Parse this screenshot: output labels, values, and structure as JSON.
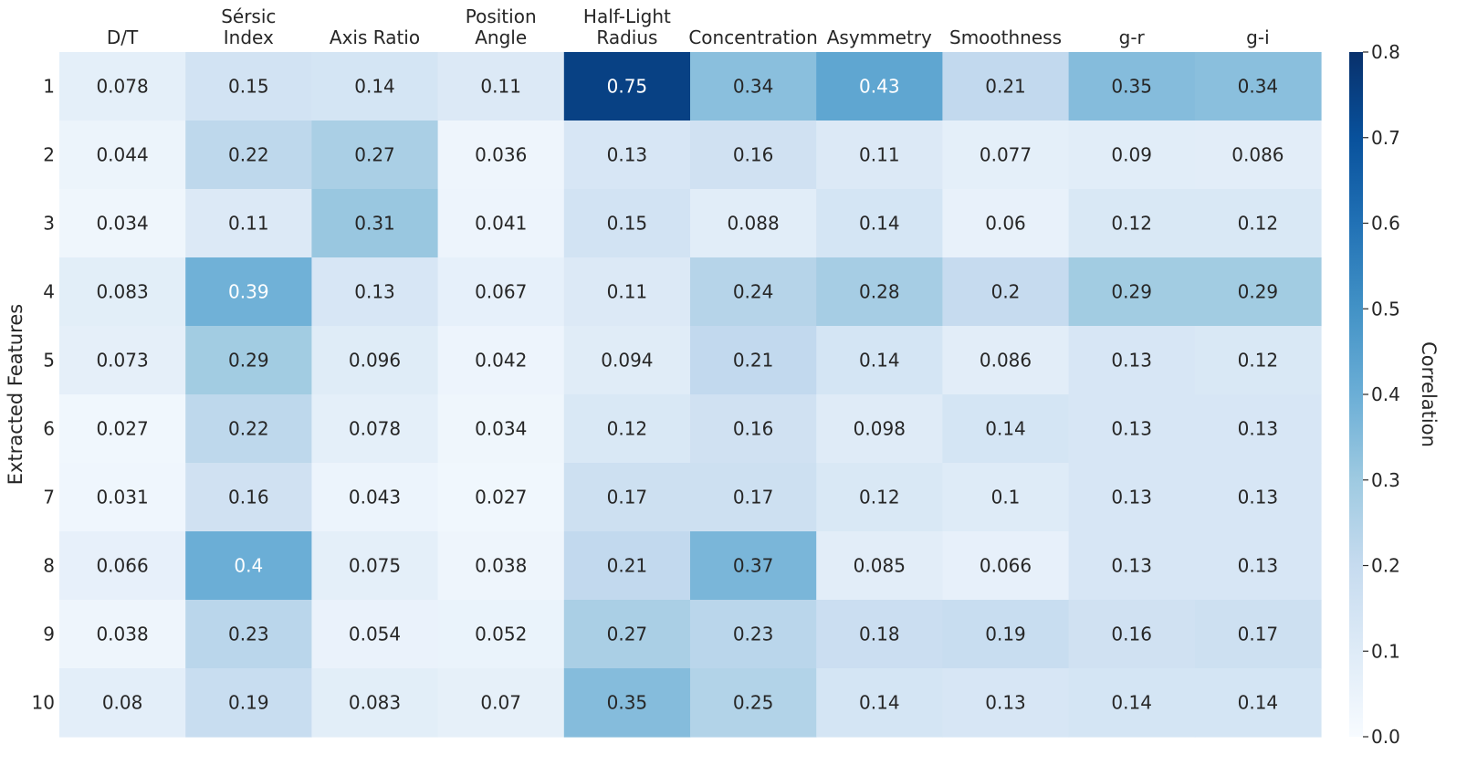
{
  "chart_data": {
    "type": "heatmap",
    "columns": [
      [
        "D/T"
      ],
      [
        "Sérsic",
        "Index"
      ],
      [
        "Axis Ratio"
      ],
      [
        "Position",
        "Angle"
      ],
      [
        "Half-Light",
        "Radius"
      ],
      [
        "Concentration"
      ],
      [
        "Asymmetry"
      ],
      [
        "Smoothness"
      ],
      [
        "g-r"
      ],
      [
        "g-i"
      ]
    ],
    "rows": [
      "1",
      "2",
      "3",
      "4",
      "5",
      "6",
      "7",
      "8",
      "9",
      "10"
    ],
    "values": [
      [
        0.078,
        0.15,
        0.14,
        0.11,
        0.75,
        0.34,
        0.43,
        0.21,
        0.35,
        0.34
      ],
      [
        0.044,
        0.22,
        0.27,
        0.036,
        0.13,
        0.16,
        0.11,
        0.077,
        0.09,
        0.086
      ],
      [
        0.034,
        0.11,
        0.31,
        0.041,
        0.15,
        0.088,
        0.14,
        0.06,
        0.12,
        0.12
      ],
      [
        0.083,
        0.39,
        0.13,
        0.067,
        0.11,
        0.24,
        0.28,
        0.2,
        0.29,
        0.29
      ],
      [
        0.073,
        0.29,
        0.096,
        0.042,
        0.094,
        0.21,
        0.14,
        0.086,
        0.13,
        0.12
      ],
      [
        0.027,
        0.22,
        0.078,
        0.034,
        0.12,
        0.16,
        0.098,
        0.14,
        0.13,
        0.13
      ],
      [
        0.031,
        0.16,
        0.043,
        0.027,
        0.17,
        0.17,
        0.12,
        0.1,
        0.13,
        0.13
      ],
      [
        0.066,
        0.4,
        0.075,
        0.038,
        0.21,
        0.37,
        0.085,
        0.066,
        0.13,
        0.13
      ],
      [
        0.038,
        0.23,
        0.054,
        0.052,
        0.27,
        0.23,
        0.18,
        0.19,
        0.16,
        0.17
      ],
      [
        0.08,
        0.19,
        0.083,
        0.07,
        0.35,
        0.25,
        0.14,
        0.13,
        0.14,
        0.14
      ]
    ],
    "ylabel": "Extracted Features",
    "colorbar": {
      "label": "Correlation",
      "range": [
        0.0,
        0.8
      ],
      "ticks": [
        "0.0",
        "0.1",
        "0.2",
        "0.3",
        "0.4",
        "0.5",
        "0.6",
        "0.7",
        "0.8"
      ],
      "colormap": "Blues"
    },
    "cell_labels_light_above": 0.38
  }
}
